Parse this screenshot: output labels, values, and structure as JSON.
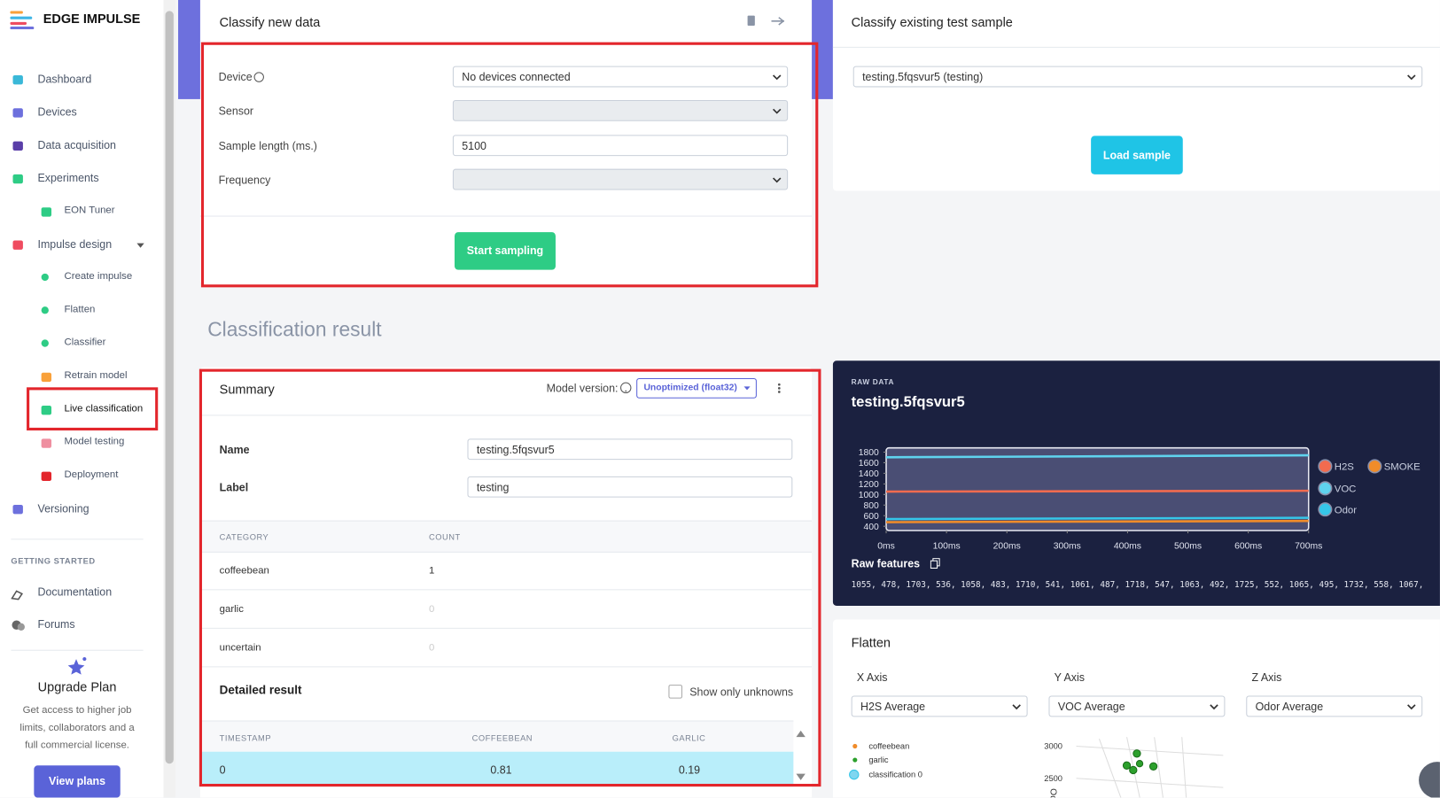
{
  "sidebar": {
    "brand": "EDGE IMPULSE",
    "nav": [
      "Dashboard",
      "Devices",
      "Data acquisition",
      "Experiments",
      "EON Tuner",
      "Impulse design",
      "Create impulse",
      "Flatten",
      "Classifier",
      "Retrain model",
      "Live classification",
      "Model testing",
      "Deployment",
      "Versioning"
    ],
    "section": "GETTING STARTED",
    "help": [
      "Documentation",
      "Forums"
    ],
    "upgrade": {
      "title": "Upgrade Plan",
      "text": [
        "Get access to higher job",
        "limits, collaborators and a",
        "full commercial license."
      ],
      "button": "View plans"
    }
  },
  "classify_new": {
    "title": "Classify new data",
    "fields": [
      {
        "label": "Device",
        "value": "No devices connected"
      },
      {
        "label": "Sensor"
      },
      {
        "label": "Sample length (ms.)",
        "value": "5100"
      },
      {
        "label": "Frequency"
      }
    ],
    "button": "Start sampling"
  },
  "classify_existing": {
    "title": "Classify existing test sample",
    "sample": "testing.5fqsvur5 (testing)",
    "button": "Load sample"
  },
  "result_heading": "Classification result",
  "summary": {
    "title": "Summary",
    "model_version_label": "Model version:",
    "model_version": "Unoptimized (float32)",
    "name_label": "Name",
    "name": "testing.5fqsvur5",
    "label_label": "Label",
    "label": "testing",
    "table": {
      "header": [
        "CATEGORY",
        "COUNT"
      ],
      "rows": [
        [
          "coffeebean",
          "1"
        ],
        [
          "garlic",
          "0"
        ],
        [
          "uncertain",
          "0"
        ]
      ]
    },
    "detailed_title": "Detailed result",
    "unknowns": "Show only unknowns",
    "detailed": {
      "header": [
        "TIMESTAMP",
        "COFFEEBEAN",
        "GARLIC"
      ],
      "rows": [
        [
          "0",
          "0.81",
          "0.19"
        ]
      ]
    }
  },
  "raw_data": {
    "kicker": "RAW DATA",
    "title": "testing.5fqsvur5",
    "features_title": "Raw features",
    "features": "1055, 478, 1703, 536, 1058, 483, 1710, 541, 1061, 487, 1718, 547, 1063, 492, 1725, 552, 1065, 495, 1732, 558, 1067, …",
    "chart": {
      "type": "line",
      "x": [
        0,
        700
      ],
      "xlim": [
        0,
        700
      ],
      "xticks": [
        {
          "value": 0,
          "label": "0ms"
        },
        {
          "value": 100,
          "label": "100ms"
        },
        {
          "value": 200,
          "label": "200ms"
        },
        {
          "value": 300,
          "label": "300ms"
        },
        {
          "value": 400,
          "label": "400ms"
        },
        {
          "value": 500,
          "label": "500ms"
        },
        {
          "value": 600,
          "label": "600ms"
        },
        {
          "value": 700,
          "label": "700ms"
        }
      ],
      "ylim": [
        320,
        1880
      ],
      "yticks": [
        400,
        600,
        800,
        1000,
        1200,
        1400,
        1600,
        1800
      ],
      "series": [
        {
          "name": "H2S",
          "color": "#f26b4f",
          "values": [
            1055,
            1070
          ]
        },
        {
          "name": "SMOKE",
          "color": "#f08c2a",
          "values": [
            478,
            500
          ]
        },
        {
          "name": "VOC",
          "color": "#5fd3ee",
          "values": [
            1703,
            1740
          ]
        },
        {
          "name": "Odor",
          "color": "#36c6e8",
          "values": [
            536,
            560
          ]
        }
      ]
    }
  },
  "flatten": {
    "title": "Flatten",
    "axes": [
      {
        "label": "X Axis",
        "value": "H2S Average"
      },
      {
        "label": "Y Axis",
        "value": "VOC Average"
      },
      {
        "label": "Z Axis",
        "value": "Odor Average"
      }
    ],
    "legend": [
      "coffeebean",
      "garlic",
      "classification 0"
    ],
    "yticks": [
      3000,
      2500
    ],
    "axis_label": "Odor"
  }
}
